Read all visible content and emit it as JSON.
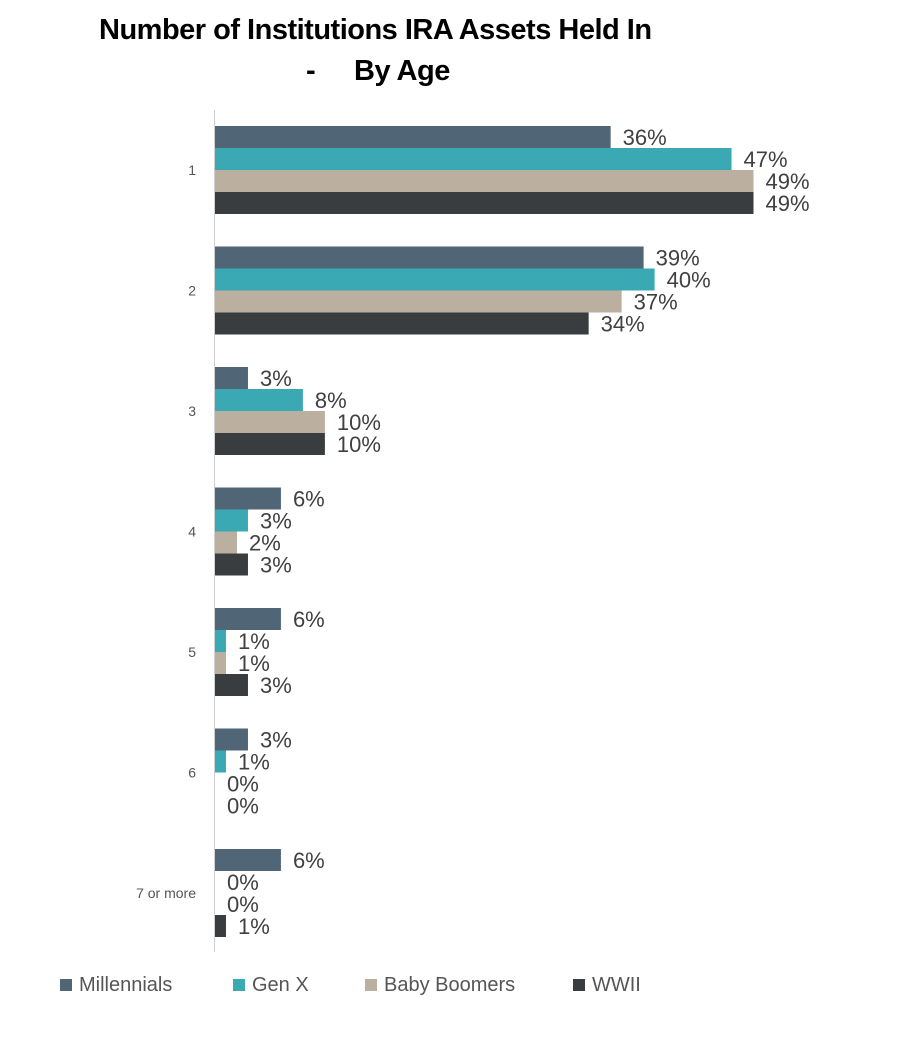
{
  "chart_data": {
    "type": "bar",
    "orientation": "horizontal",
    "title": "Number of Institutions IRA Assets Held In",
    "subtitle_dash": "-",
    "subtitle": "By Age",
    "categories": [
      "1",
      "2",
      "3",
      "4",
      "5",
      "6",
      "7 or more"
    ],
    "series": [
      {
        "name": "Millennials",
        "color": "#506677",
        "values": [
          36,
          39,
          3,
          6,
          6,
          3,
          6
        ]
      },
      {
        "name": "Gen X",
        "color": "#3BA9B4",
        "values": [
          47,
          40,
          8,
          3,
          1,
          1,
          0
        ]
      },
      {
        "name": "Baby Boomers",
        "color": "#BBAF9F",
        "values": [
          49,
          37,
          10,
          2,
          1,
          0,
          0
        ]
      },
      {
        "name": "WWII",
        "color": "#3A3D40",
        "values": [
          49,
          34,
          10,
          3,
          3,
          0,
          1
        ]
      }
    ],
    "value_suffix": "%",
    "xlim": [
      0,
      50
    ],
    "grid": false,
    "legend": "bottom"
  }
}
